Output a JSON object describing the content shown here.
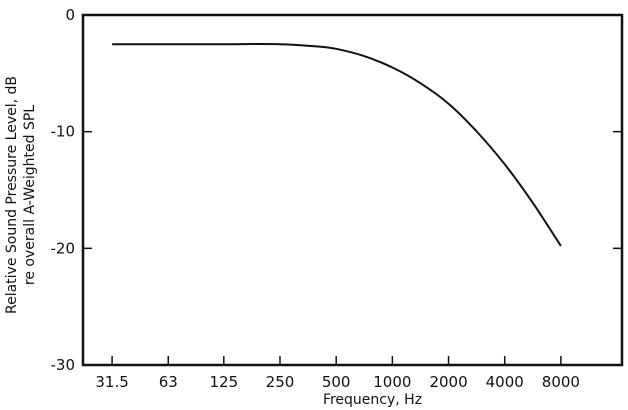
{
  "chart_data": {
    "type": "line",
    "xlabel": "Frequency, Hz",
    "ylabel_lines": [
      "Relative Sound Pressure Level, dB",
      "re overall A-Weighted SPL"
    ],
    "x_scale": "log2",
    "x_ticks": [
      "31.5",
      "63",
      "125",
      "250",
      "500",
      "1000",
      "2000",
      "4000",
      "8000"
    ],
    "x_tick_values": [
      31.5,
      63,
      125,
      250,
      500,
      1000,
      2000,
      4000,
      8000
    ],
    "y_ticks": [
      "0",
      "-10",
      "-20",
      "-30"
    ],
    "y_tick_values": [
      0,
      -10,
      -20,
      -30
    ],
    "ylim": [
      -30,
      0
    ],
    "xlim": [
      22,
      17000
    ],
    "grid": false,
    "series": [
      {
        "color": "#111111",
        "x": [
          31.5,
          63,
          125,
          250,
          400,
          500,
          700,
          1000,
          1400,
          2000,
          2800,
          4000,
          5600,
          8000
        ],
        "y": [
          -2.5,
          -2.5,
          -2.5,
          -2.5,
          -2.7,
          -2.9,
          -3.5,
          -4.5,
          -5.8,
          -7.6,
          -9.9,
          -12.8,
          -16.0,
          -19.8
        ]
      }
    ]
  }
}
